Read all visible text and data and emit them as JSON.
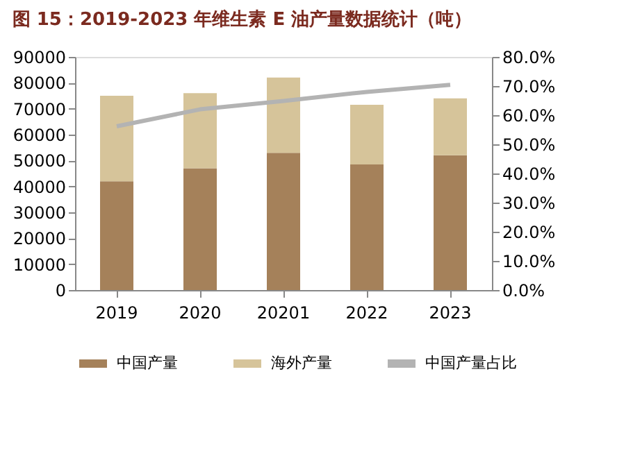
{
  "chart_data": {
    "type": "bar",
    "title": "图 15：2019-2023 年维生素 E 油产量数据统计（吨）",
    "categories": [
      "2019",
      "2020",
      "20201",
      "2022",
      "2023"
    ],
    "stacked": true,
    "series": [
      {
        "name": "中国产量",
        "color": "#a5815a",
        "values": [
          42000,
          47000,
          53000,
          48500,
          52000
        ]
      },
      {
        "name": "海外产量",
        "color": "#d6c49a",
        "values": [
          33000,
          29000,
          29000,
          23000,
          22000
        ]
      },
      {
        "name": "中国产量占比",
        "type": "line",
        "axis": "y2",
        "color": "#b3b3b3",
        "values": [
          56.2,
          62,
          64.9,
          68,
          70.4
        ]
      }
    ],
    "ylim": [
      0,
      90000
    ],
    "yticks": [
      0,
      10000,
      20000,
      30000,
      40000,
      50000,
      60000,
      70000,
      80000,
      90000
    ],
    "y2lim": [
      0,
      80
    ],
    "y2ticks": [
      {
        "value": 0,
        "label": "0.0%"
      },
      {
        "value": 10,
        "label": "10.0%"
      },
      {
        "value": 20,
        "label": "20.0%"
      },
      {
        "value": 30,
        "label": "30.0%"
      },
      {
        "value": 40,
        "label": "40.0%"
      },
      {
        "value": 50,
        "label": "50.0%"
      },
      {
        "value": 60,
        "label": "60.0%"
      },
      {
        "value": 70,
        "label": "70.0%"
      },
      {
        "value": 80,
        "label": "80.0%"
      }
    ],
    "grid": false,
    "legend": "bottom",
    "marker": "none",
    "line_style": "solid"
  }
}
